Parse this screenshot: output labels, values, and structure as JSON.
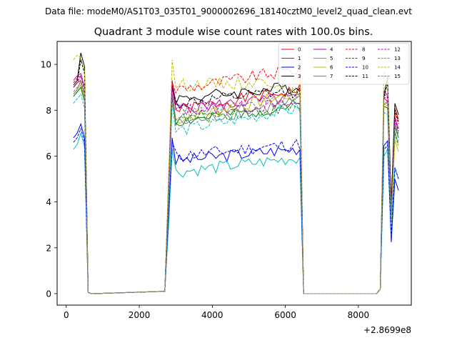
{
  "chart_data": {
    "type": "line",
    "suptitle": "Data file: modeM0/AS1T03_035T01_9000002696_18140cztM0_level2_quad_clean.evt",
    "title": "Quadrant 3 module wise count rates with 100.0s bins.",
    "xlabel": "",
    "ylabel": "",
    "offset_text": "+2.8699e8",
    "xlim": [
      -250,
      9450
    ],
    "ylim": [
      -0.5,
      11.0
    ],
    "xticks": [
      0,
      2000,
      4000,
      6000,
      8000
    ],
    "yticks": [
      0,
      2,
      4,
      6,
      8,
      10
    ],
    "legend_position": "top-right",
    "base_x": [
      200,
      300,
      400,
      500,
      600,
      700,
      2700,
      2800,
      2900,
      3000,
      3100,
      3200,
      3300,
      3400,
      3500,
      3600,
      3700,
      3800,
      3900,
      4000,
      4100,
      4200,
      4300,
      4400,
      4500,
      4600,
      4700,
      4800,
      4900,
      5000,
      5100,
      5200,
      5300,
      5400,
      5500,
      5600,
      5700,
      5800,
      5900,
      6000,
      6100,
      6200,
      6300,
      6400,
      6500,
      6600,
      8500,
      8600,
      8700,
      8800,
      8900,
      9000,
      9100
    ],
    "series": [
      {
        "name": "0",
        "color": "#ff0000",
        "dash": "solid",
        "level": 8.0,
        "start": 9.0,
        "peak": 9.3,
        "end": 9.0,
        "tail": 7.6
      },
      {
        "name": "1",
        "color": "#008000",
        "dash": "solid",
        "level": 7.5,
        "start": 8.6,
        "peak": 9.0,
        "end": 8.3,
        "tail": 6.8
      },
      {
        "name": "2",
        "color": "#0000ff",
        "dash": "solid",
        "level": 5.8,
        "start": 6.8,
        "peak": 7.4,
        "end": 6.4,
        "tail": 4.5
      },
      {
        "name": "3",
        "color": "#000000",
        "dash": "solid",
        "level": 8.5,
        "start": 9.1,
        "peak": 10.5,
        "end": 9.1,
        "tail": 7.8
      },
      {
        "name": "4",
        "color": "#bf00bf",
        "dash": "solid",
        "level": 8.1,
        "start": 9.3,
        "peak": 9.6,
        "end": 8.6,
        "tail": 7.2
      },
      {
        "name": "5",
        "color": "#00bfbf",
        "dash": "solid",
        "level": 5.3,
        "start": 6.3,
        "peak": 7.0,
        "end": 6.0,
        "tail": 5.0
      },
      {
        "name": "6",
        "color": "#bfbf00",
        "dash": "solid",
        "level": 7.6,
        "start": 8.7,
        "peak": 9.1,
        "end": 8.9,
        "tail": 6.2
      },
      {
        "name": "7",
        "color": "#808080",
        "dash": "solid",
        "level": 7.4,
        "start": 8.7,
        "peak": 9.3,
        "end": 8.5,
        "tail": 7.0
      },
      {
        "name": "8",
        "color": "#ff0000",
        "dash": "dashed",
        "level": 8.9,
        "start": 9.2,
        "peak": 9.5,
        "end": 9.9,
        "tail": 7.4
      },
      {
        "name": "9",
        "color": "#008000",
        "dash": "dashed",
        "level": 7.6,
        "start": 8.6,
        "peak": 9.0,
        "end": 8.2,
        "tail": 6.5
      },
      {
        "name": "10",
        "color": "#0000ff",
        "dash": "dashed",
        "level": 6.0,
        "start": 6.6,
        "peak": 7.2,
        "end": 6.6,
        "tail": 5.0
      },
      {
        "name": "11",
        "color": "#000000",
        "dash": "dashed",
        "level": 8.3,
        "start": 9.0,
        "peak": 10.2,
        "end": 8.9,
        "tail": 7.5
      },
      {
        "name": "12",
        "color": "#bf00bf",
        "dash": "dashed",
        "level": 8.0,
        "start": 9.0,
        "peak": 9.5,
        "end": 8.3,
        "tail": 7.1
      },
      {
        "name": "13",
        "color": "#00bfbf",
        "dash": "dashed",
        "level": 7.1,
        "start": 8.3,
        "peak": 8.7,
        "end": 8.2,
        "tail": 6.6
      },
      {
        "name": "14",
        "color": "#bfbf00",
        "dash": "dashed",
        "level": 9.1,
        "start": 10.2,
        "peak": 10.3,
        "end": 9.3,
        "tail": 6.4
      },
      {
        "name": "15",
        "color": "#808080",
        "dash": "dashed",
        "level": 7.8,
        "start": 8.8,
        "peak": 9.2,
        "end": 8.6,
        "tail": 6.9
      }
    ]
  }
}
